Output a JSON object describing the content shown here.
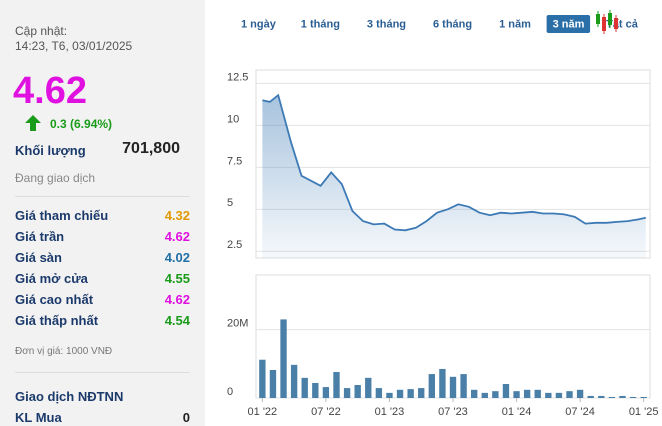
{
  "panel": {
    "updated_label": "Cập nhật:",
    "updated_time": "14:23, T6, 03/01/2025",
    "price": "4.62",
    "change": "0.3 (6.94%)",
    "volume_label": "Khối lượng",
    "volume": "701,800",
    "status": "Đang giao dịch",
    "stats": [
      {
        "label": "Giá tham chiếu",
        "value": "4.32",
        "color": "#e09a00"
      },
      {
        "label": "Giá trần",
        "value": "4.62",
        "color": "#e010e0"
      },
      {
        "label": "Giá sàn",
        "value": "4.02",
        "color": "#1f6fa8"
      },
      {
        "label": "Giá mở cửa",
        "value": "4.55",
        "color": "#1a9c1a"
      },
      {
        "label": "Giá cao nhất",
        "value": "4.62",
        "color": "#e010e0"
      },
      {
        "label": "Giá thấp nhất",
        "value": "4.54",
        "color": "#1a9c1a"
      }
    ],
    "unit_note": "Đơn vị giá: 1000 VNĐ",
    "foreign_title": "Giao dịch NĐTNN",
    "foreign_rows": [
      {
        "label": "KL Mua",
        "value": "0"
      }
    ]
  },
  "tabs": {
    "items": [
      "1 ngày",
      "1 tháng",
      "3 tháng",
      "6 tháng",
      "1 năm",
      "3 năm",
      "Tất cả"
    ],
    "active": 5
  },
  "chart_data": [
    {
      "type": "area",
      "color": "#3d7ab5",
      "xlim": [
        -0.6,
        36.6
      ],
      "ylim": [
        2.1,
        13.3
      ],
      "yticks": [
        2.5,
        5,
        7.5,
        10,
        12.5
      ],
      "grid": true,
      "series": [
        {
          "x": [
            0,
            0.7,
            1.5,
            2.7,
            3.7,
            5.5,
            6.5,
            7.5,
            8.5,
            9.5,
            10.5,
            11.5,
            12.5,
            13.5,
            14.5,
            15.5,
            16.5,
            17.5,
            18.5,
            19.5,
            20.5,
            21.5,
            22.5,
            23.5,
            24.5,
            25.5,
            26.5,
            27.5,
            28.5,
            29.5,
            30.5,
            31.5,
            32.5,
            33.5,
            34.5,
            35.5,
            36.2
          ],
          "values": [
            11.5,
            11.4,
            11.8,
            9.0,
            7.0,
            6.4,
            7.2,
            6.5,
            4.9,
            4.3,
            4.1,
            4.15,
            3.8,
            3.75,
            3.9,
            4.3,
            4.8,
            5.0,
            5.3,
            5.15,
            4.8,
            4.65,
            4.8,
            4.75,
            4.8,
            4.85,
            4.75,
            4.75,
            4.7,
            4.55,
            4.15,
            4.2,
            4.2,
            4.25,
            4.3,
            4.4,
            4.5
          ]
        }
      ]
    },
    {
      "type": "bar",
      "color": "#4a7fa8",
      "xlim": [
        -0.6,
        36.6
      ],
      "ylim": [
        0,
        36
      ],
      "yticks": [
        0,
        {
          "value": 20,
          "label": "20M"
        }
      ],
      "grid": true,
      "xticks": [
        {
          "value": 0,
          "label": "01 '22"
        },
        {
          "value": 6,
          "label": "07 '22"
        },
        {
          "value": 12,
          "label": "01 '23"
        },
        {
          "value": 18,
          "label": "07 '23"
        },
        {
          "value": 24,
          "label": "01 '24"
        },
        {
          "value": 30,
          "label": "07 '24"
        },
        {
          "value": 36,
          "label": "01 '25"
        }
      ],
      "x": [
        0,
        1,
        2,
        3,
        4,
        5,
        6,
        7,
        8,
        9,
        10,
        11,
        12,
        13,
        14,
        15,
        16,
        17,
        18,
        19,
        20,
        21,
        22,
        23,
        24,
        25,
        26,
        27,
        28,
        29,
        30,
        31,
        32,
        33,
        34,
        35,
        36
      ],
      "values": [
        11.2,
        8.2,
        23,
        9.7,
        5.9,
        4.4,
        3.2,
        7.6,
        2.9,
        3.8,
        5.9,
        2.9,
        1.5,
        2.4,
        2.6,
        2.9,
        7,
        8.5,
        6.2,
        7,
        2.4,
        1.5,
        2,
        4.1,
        2,
        2.4,
        2.4,
        1.5,
        1.5,
        2,
        2.4,
        0.6,
        0.6,
        0.3,
        0.6,
        0.3,
        0.3
      ]
    }
  ]
}
